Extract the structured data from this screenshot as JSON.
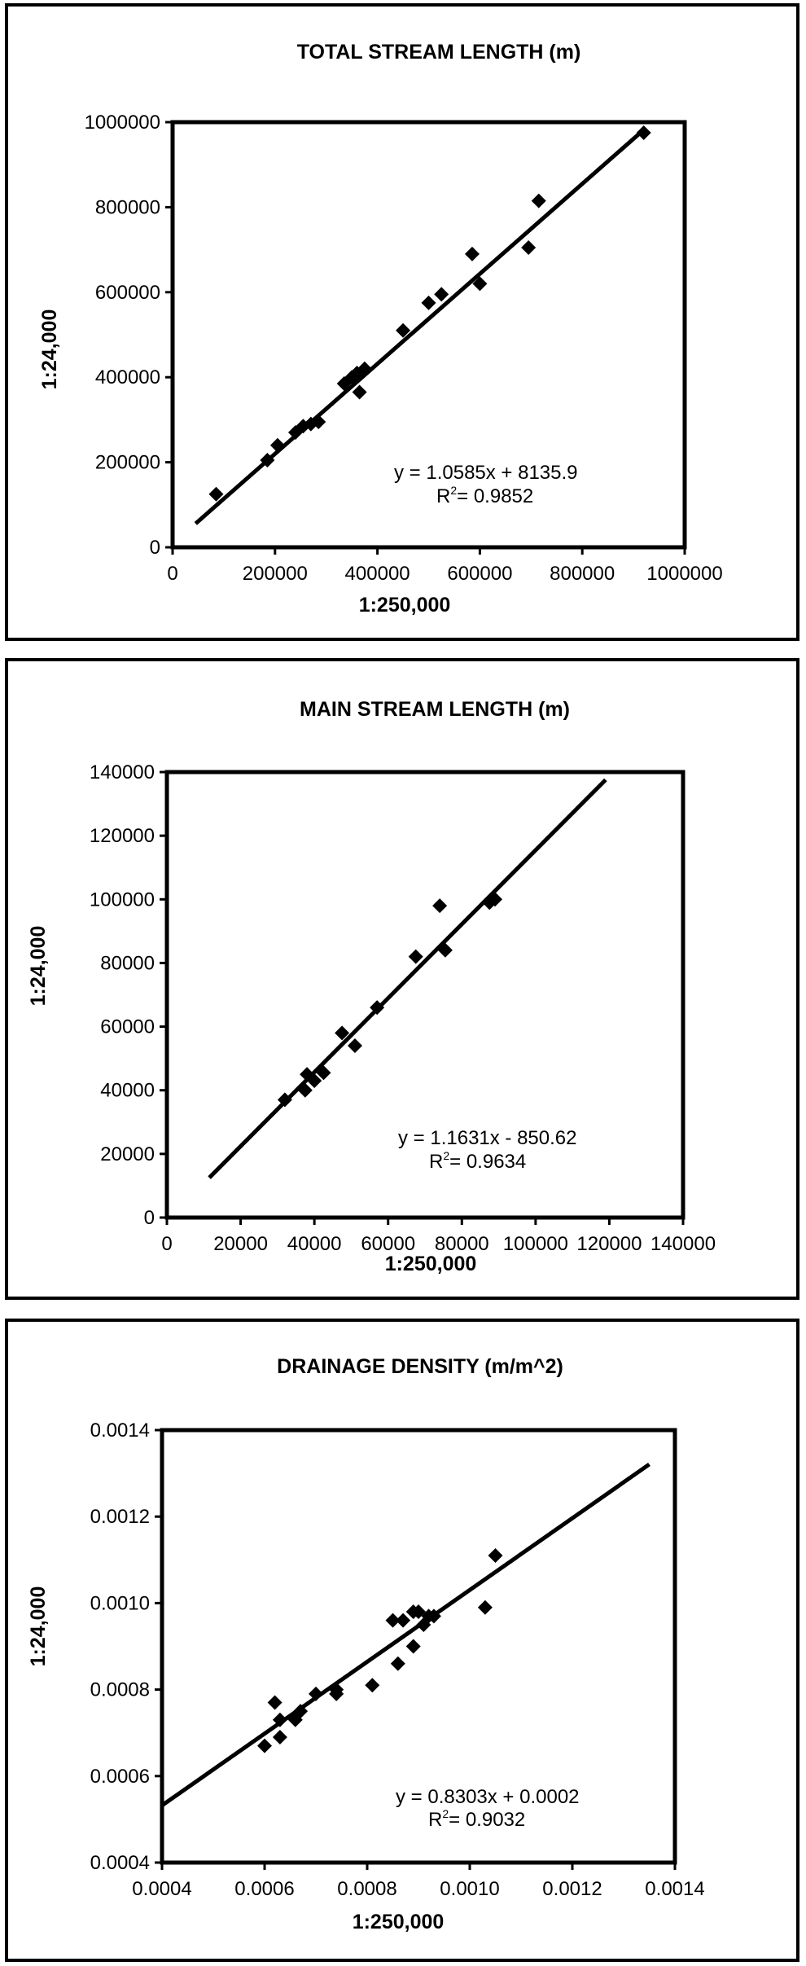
{
  "chart_data": [
    {
      "type": "scatter",
      "title": "TOTAL STREAM LENGTH (m)",
      "xlabel": "1:250,000",
      "ylabel": "1:24,000",
      "xlim": [
        0,
        1000000
      ],
      "ylim": [
        0,
        1000000
      ],
      "xticks": [
        "0",
        "200000",
        "400000",
        "600000",
        "800000",
        "1000000"
      ],
      "yticks": [
        "0",
        "200000",
        "400000",
        "600000",
        "800000",
        "1000000"
      ],
      "equation": "y = 1.0585x + 8135.9",
      "r2_label": "R",
      "r2_sup": "2",
      "r2_value": "= 0.9852",
      "trendline": {
        "slope": 1.0585,
        "intercept": 8135.9,
        "x_range": [
          45000,
          920000
        ]
      },
      "series": [
        {
          "x": [
            85000,
            185000,
            205000,
            240000,
            255000,
            270000,
            285000,
            335000,
            350000,
            360000,
            365000,
            375000,
            450000,
            500000,
            525000,
            585000,
            600000,
            695000,
            715000,
            920000
          ],
          "y": [
            125000,
            205000,
            240000,
            270000,
            285000,
            290000,
            295000,
            385000,
            400000,
            410000,
            365000,
            420000,
            510000,
            575000,
            595000,
            690000,
            620000,
            705000,
            815000,
            975000
          ]
        }
      ]
    },
    {
      "type": "scatter",
      "title": "MAIN STREAM LENGTH (m)",
      "xlabel": "1:250,000",
      "ylabel": "1:24,000",
      "xlim": [
        0,
        140000
      ],
      "ylim": [
        0,
        140000
      ],
      "xticks": [
        "0",
        "20000",
        "40000",
        "60000",
        "80000",
        "100000",
        "120000",
        "140000"
      ],
      "yticks": [
        "0",
        "20000",
        "40000",
        "60000",
        "80000",
        "100000",
        "120000",
        "140000"
      ],
      "equation": "y = 1.1631x - 850.62",
      "r2_label": "R",
      "r2_sup": "2",
      "r2_value": "= 0.9634",
      "trendline": {
        "slope": 1.1631,
        "intercept": -850.62,
        "x_range": [
          11500,
          119000
        ]
      },
      "series": [
        {
          "x": [
            32000,
            37500,
            38000,
            40000,
            42500,
            47500,
            51000,
            57000,
            67500,
            74000,
            75500,
            87500,
            89000
          ],
          "y": [
            37000,
            40000,
            45000,
            43000,
            45500,
            58000,
            54000,
            66000,
            82000,
            98000,
            84000,
            99000,
            100000
          ]
        }
      ]
    },
    {
      "type": "scatter",
      "title": "DRAINAGE DENSITY (m/m^2)",
      "xlabel": "1:250,000",
      "ylabel": "1:24,000",
      "xlim": [
        0.0004,
        0.0014
      ],
      "ylim": [
        0.0004,
        0.0014
      ],
      "xticks": [
        "0.0004",
        "0.0006",
        "0.0008",
        "0.0010",
        "0.0012",
        "0.0014"
      ],
      "yticks": [
        "0.0004",
        "0.0006",
        "0.0008",
        "0.0010",
        "0.0012",
        "0.0014"
      ],
      "equation": "y = 0.8303x + 0.0002",
      "r2_label": "R",
      "r2_sup": "2",
      "r2_value": "= 0.9032",
      "trendline": {
        "slope": 0.8303,
        "intercept": 0.0002,
        "x_range": [
          0.0004,
          0.00135
        ]
      },
      "series": [
        {
          "x": [
            0.0006,
            0.00062,
            0.00063,
            0.00063,
            0.00066,
            0.00067,
            0.0007,
            0.00074,
            0.00074,
            0.00081,
            0.00085,
            0.00086,
            0.00087,
            0.00089,
            0.00089,
            0.0009,
            0.00091,
            0.00092,
            0.00093,
            0.00103,
            0.00105
          ],
          "y": [
            0.00067,
            0.00077,
            0.00069,
            0.00073,
            0.00073,
            0.00075,
            0.00079,
            0.00079,
            0.0008,
            0.00081,
            0.00096,
            0.00086,
            0.00096,
            0.00098,
            0.0009,
            0.00098,
            0.00095,
            0.00097,
            0.00097,
            0.00099,
            0.00111
          ]
        }
      ]
    }
  ]
}
